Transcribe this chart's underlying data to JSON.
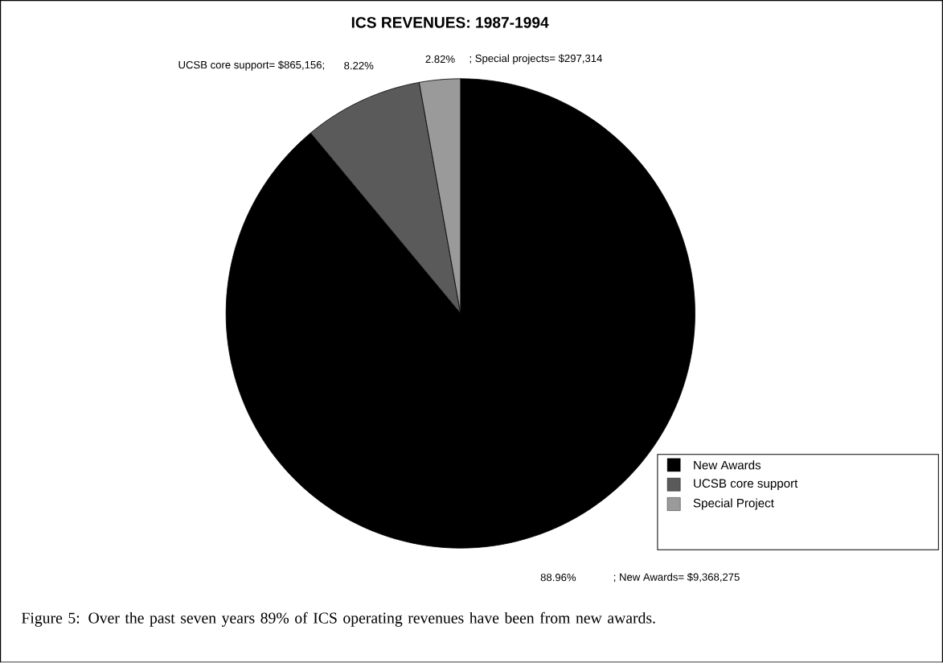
{
  "chart_data": {
    "type": "pie",
    "title": "ICS REVENUES: 1987-1994",
    "categories": [
      "New Awards",
      "UCSB core support",
      "Special Project"
    ],
    "values": [
      88.96,
      8.22,
      2.82
    ],
    "colors": [
      "#000000",
      "#5a5a5a",
      "#9a9a9a"
    ],
    "value_labels": [
      "88.96%",
      "8.22%",
      "2.82%"
    ],
    "legend": "bottom right",
    "annotations": [
      "; New Awards= $9,368,275",
      "UCSB core support= $865,156;",
      "; Special projects= $297,314",
      "Figure 5:  Over the past seven years  89% of ICS operating revenues have been from new awards."
    ]
  }
}
